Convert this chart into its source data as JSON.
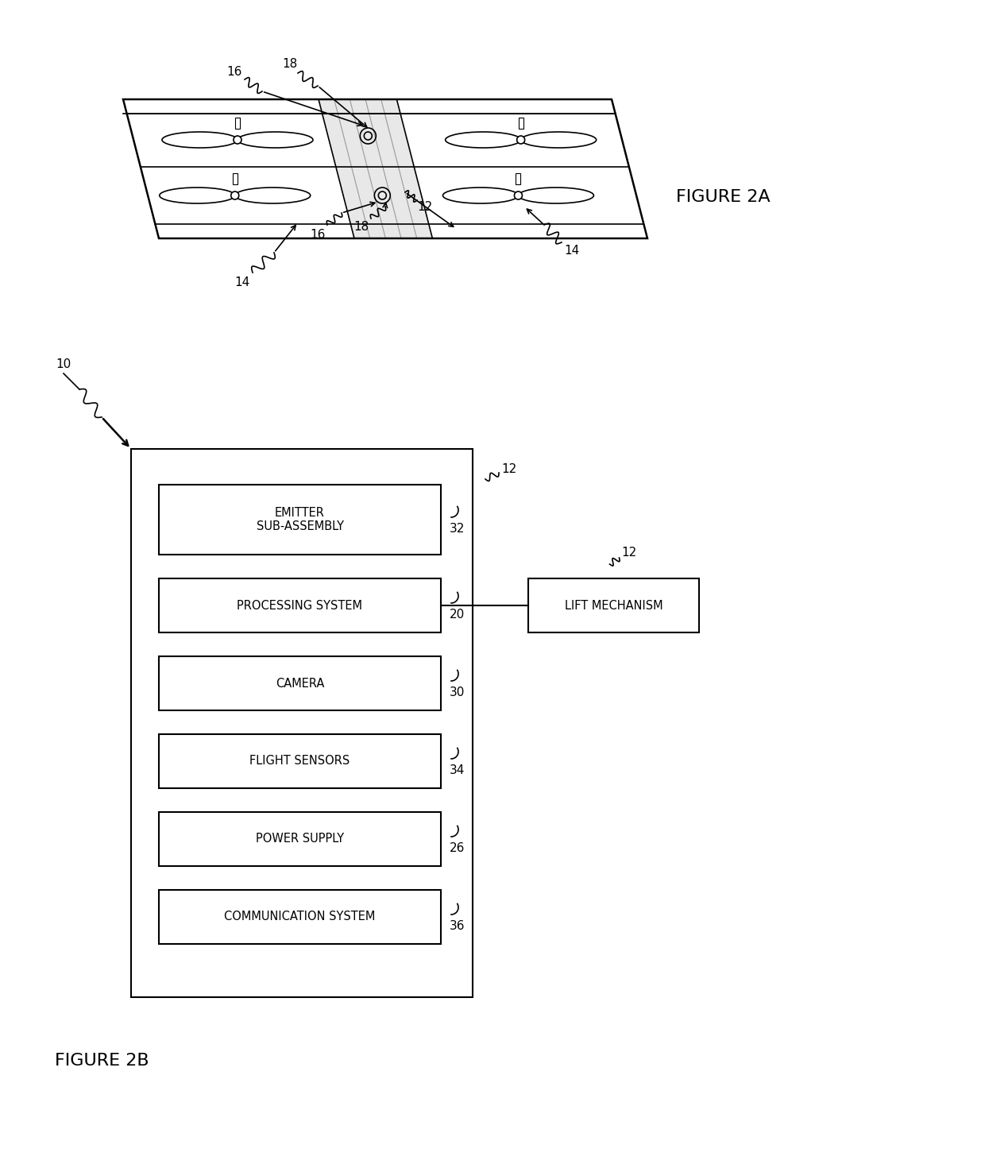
{
  "background_color": "#ffffff",
  "fig_2a_label": "FIGURE 2A",
  "fig_2b_label": "FIGURE 2B",
  "boxes": [
    {
      "label": "EMITTER\nSUB-ASSEMBLY",
      "number": "32"
    },
    {
      "label": "PROCESSING SYSTEM",
      "number": "20"
    },
    {
      "label": "CAMERA",
      "number": "30"
    },
    {
      "label": "FLIGHT SENSORS",
      "number": "34"
    },
    {
      "label": "POWER SUPPLY",
      "number": "26"
    },
    {
      "label": "COMMUNICATION SYSTEM",
      "number": "36"
    }
  ],
  "lift_box_label": "LIFT MECHANISM"
}
